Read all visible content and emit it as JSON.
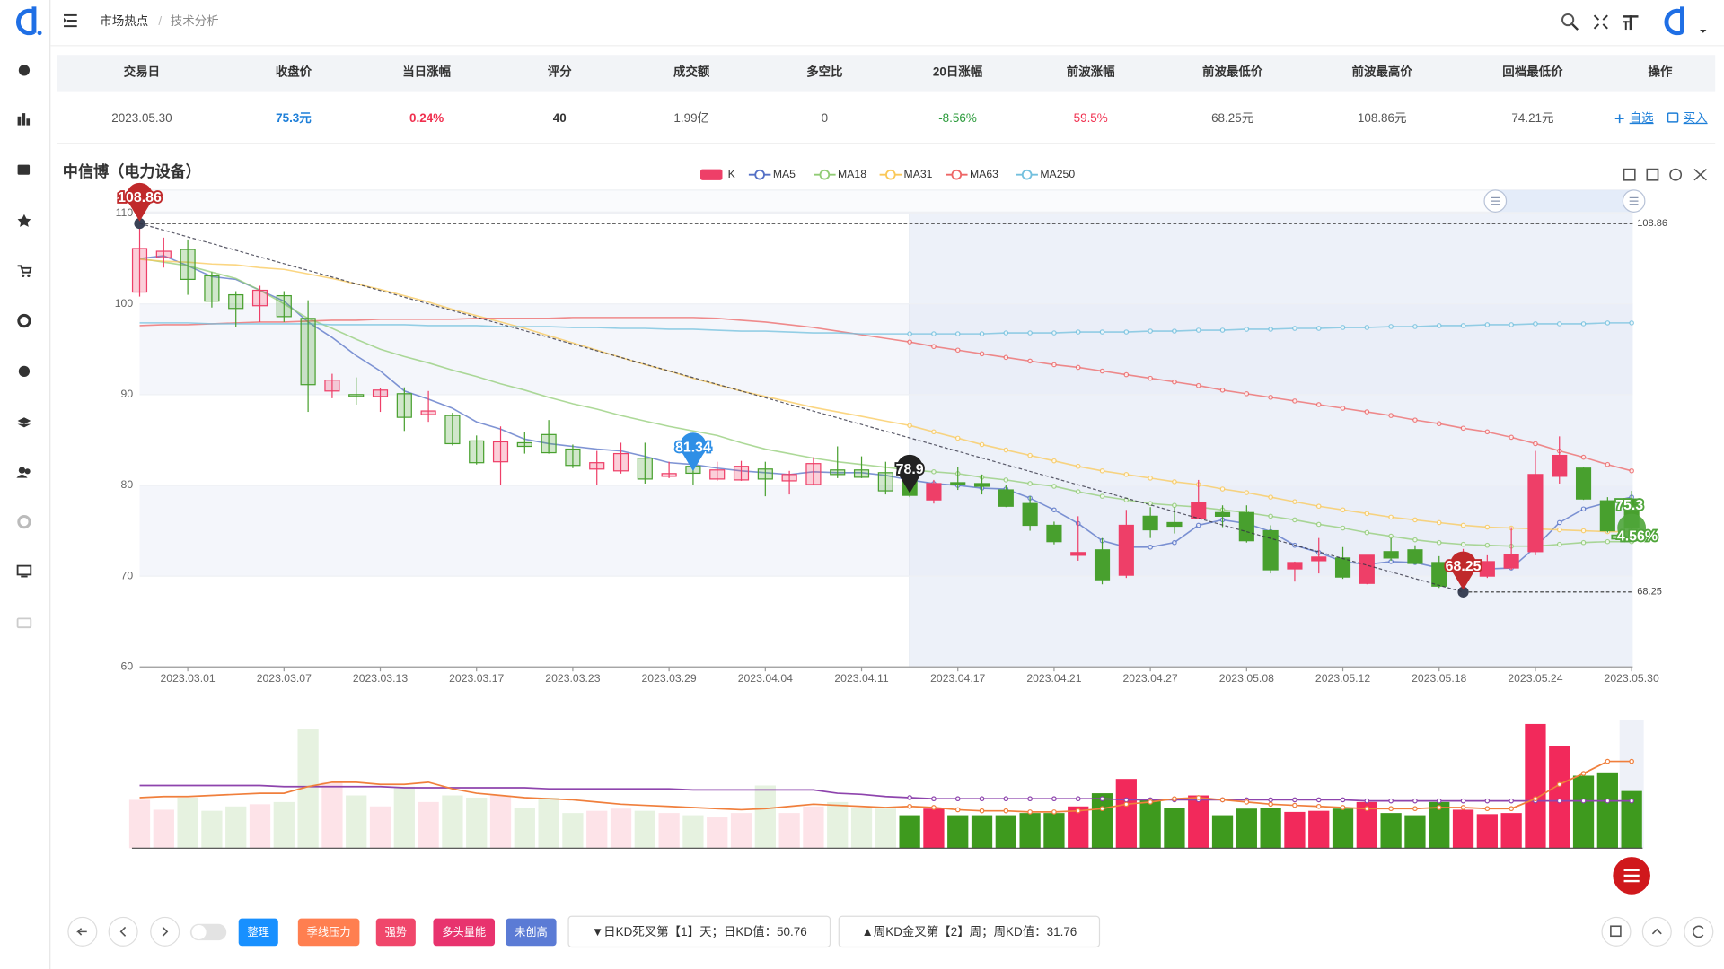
{
  "header": {
    "breadcrumb": [
      "市场热点",
      "技术分析"
    ]
  },
  "table": {
    "columns": [
      "交易日",
      "收盘价",
      "当日涨幅",
      "评分",
      "成交额",
      "多空比",
      "20日涨幅",
      "前波涨幅",
      "前波最低价",
      "前波最高价",
      "回档最低价",
      "操作"
    ],
    "rows": [
      [
        "2023.05.30",
        "75.3元",
        "0.24%",
        "40",
        "1.99亿",
        "0",
        "-8.56%",
        "59.5%",
        "68.25元",
        "108.86元",
        "74.21元"
      ]
    ],
    "actions": [
      "自选",
      "买入"
    ]
  },
  "chart_data": [
    {
      "type": "candlestick",
      "title": "中信博（电力设备）",
      "categories": [
        null,
        null,
        "2023.03.01",
        null,
        null,
        null,
        "2023.03.07",
        null,
        null,
        null,
        "2023.03.13",
        null,
        null,
        null,
        "2023.03.17",
        null,
        null,
        null,
        "2023.03.23",
        null,
        null,
        null,
        "2023.03.29",
        null,
        null,
        null,
        "2023.04.04",
        null,
        null,
        null,
        "2023.04.11",
        null,
        null,
        null,
        "2023.04.17",
        null,
        null,
        null,
        "2023.04.21",
        null,
        null,
        null,
        "2023.04.27",
        null,
        null,
        null,
        "2023.05.08",
        null,
        null,
        null,
        "2023.05.12",
        null,
        null,
        null,
        "2023.05.18",
        null,
        null,
        null,
        "2023.05.24",
        null,
        null,
        null,
        "2023.05.30"
      ],
      "ylim": [
        60,
        110
      ],
      "yticks": [
        60,
        70,
        80,
        90,
        100,
        110
      ],
      "up_color": "#ee3f68",
      "down_color": "#48a02e",
      "series": [
        {
          "name": "K",
          "color": "#ee3f68",
          "open": [
            101.3,
            105.1,
            106.0,
            103.1,
            101.0,
            99.8,
            100.9,
            98.4,
            90.4,
            90.0,
            89.8,
            90.1,
            87.8,
            87.7,
            84.9,
            82.6,
            84.7,
            85.6,
            84.0,
            81.8,
            81.6,
            83.0,
            81.0,
            82.1,
            80.7,
            80.6,
            81.8,
            80.5,
            80.1,
            81.7,
            81.7,
            81.4,
            80.5,
            78.4,
            80.3,
            80.2,
            79.5,
            78.0,
            75.6,
            72.3,
            72.9,
            70.1,
            76.6,
            75.9,
            76.4,
            77.0,
            77.0,
            75.0,
            70.8,
            71.7,
            72.0,
            69.2,
            72.7,
            72.9,
            71.5,
            70.3,
            70.0,
            70.9,
            72.7,
            81.0,
            81.9,
            78.3,
            78.5
          ],
          "high": [
            108.86,
            107.3,
            107.1,
            103.5,
            101.4,
            102.0,
            101.4,
            100.4,
            92.3,
            91.9,
            90.7,
            90.8,
            90.4,
            88.0,
            85.5,
            86.5,
            85.9,
            87.2,
            84.5,
            83.8,
            84.7,
            84.7,
            82.6,
            83.8,
            82.6,
            82.7,
            82.6,
            81.6,
            83.1,
            84.3,
            83.2,
            82.6,
            83.2,
            80.6,
            82.0,
            81.2,
            80.0,
            78.8,
            76.0,
            76.6,
            74.2,
            77.3,
            77.6,
            77.6,
            80.6,
            77.8,
            77.8,
            75.6,
            71.6,
            74.2,
            73.2,
            72.3,
            74.2,
            73.4,
            72.2,
            73.0,
            72.3,
            75.4,
            83.8,
            85.4,
            82.0,
            78.7,
            79.4
          ],
          "low": [
            100.8,
            104.0,
            101.0,
            99.6,
            97.4,
            98.0,
            98.0,
            88.1,
            89.6,
            88.9,
            88.1,
            86.0,
            87.0,
            84.4,
            82.3,
            80.0,
            83.5,
            83.5,
            81.9,
            80.0,
            81.3,
            80.2,
            80.8,
            80.1,
            80.5,
            80.5,
            78.8,
            79.0,
            80.0,
            80.8,
            80.8,
            79.0,
            78.7,
            78.0,
            79.5,
            79.0,
            77.6,
            75.0,
            73.5,
            71.7,
            69.1,
            69.8,
            74.2,
            74.7,
            76.3,
            75.4,
            73.7,
            70.3,
            69.4,
            70.3,
            69.7,
            69.1,
            71.7,
            71.3,
            68.7,
            68.25,
            69.8,
            70.7,
            72.3,
            80.2,
            78.4,
            74.8,
            74.8
          ],
          "close": [
            106.1,
            105.8,
            102.7,
            100.3,
            99.5,
            101.5,
            98.6,
            91.1,
            91.6,
            89.8,
            90.5,
            87.5,
            88.2,
            84.6,
            82.5,
            84.8,
            84.3,
            83.6,
            82.2,
            82.5,
            83.5,
            80.7,
            81.3,
            81.34,
            81.7,
            82.1,
            80.7,
            81.2,
            82.4,
            81.2,
            80.9,
            79.4,
            78.9,
            80.2,
            80.1,
            79.9,
            77.7,
            75.6,
            73.8,
            72.6,
            69.6,
            75.6,
            75.1,
            75.5,
            78.1,
            76.6,
            73.9,
            70.7,
            71.5,
            72.1,
            69.9,
            72.3,
            72.0,
            71.4,
            68.9,
            71.7,
            71.6,
            72.4,
            81.2,
            83.3,
            78.5,
            75.0,
            75.3
          ]
        },
        {
          "name": "MA5",
          "color": "#5470c6",
          "values": [
            105.0,
            105.3,
            104.2,
            103.0,
            102.7,
            101.5,
            100.3,
            98.0,
            96.3,
            94.3,
            92.6,
            90.4,
            89.5,
            88.5,
            87.0,
            86.2,
            85.1,
            84.6,
            84.3,
            84.0,
            83.8,
            83.2,
            82.5,
            82.3,
            81.9,
            81.6,
            81.4,
            81.2,
            81.5,
            81.4,
            81.4,
            81.1,
            80.6,
            80.2,
            80.0,
            79.7,
            79.6,
            78.6,
            77.3,
            75.8,
            73.9,
            73.2,
            73.2,
            73.7,
            75.6,
            76.2,
            75.8,
            74.9,
            73.4,
            72.6,
            71.6,
            71.3,
            71.6,
            71.5,
            70.9,
            70.9,
            70.8,
            70.9,
            73.2,
            75.9,
            77.4,
            78.1,
            78.7
          ]
        },
        {
          "name": "MA18",
          "color": "#91cc75",
          "values": [
            105.0,
            104.6,
            104.2,
            103.5,
            102.8,
            101.5,
            100.0,
            98.4,
            97.3,
            96.1,
            95.0,
            94.2,
            93.5,
            92.7,
            92.0,
            91.2,
            90.5,
            89.7,
            89.0,
            88.4,
            87.7,
            87.1,
            86.5,
            86.0,
            85.5,
            84.7,
            84.0,
            83.5,
            83.0,
            82.6,
            82.3,
            82.0,
            81.7,
            81.5,
            81.3,
            80.9,
            80.6,
            80.2,
            79.9,
            79.3,
            78.8,
            78.4,
            78.0,
            77.8,
            77.6,
            77.3,
            77.0,
            76.6,
            76.2,
            75.7,
            75.3,
            74.8,
            74.4,
            74.0,
            73.7,
            73.5,
            73.4,
            73.3,
            73.3,
            73.5,
            73.7,
            73.8,
            73.8
          ]
        },
        {
          "name": "MA31",
          "color": "#fac858",
          "values": [
            104.9,
            104.7,
            104.6,
            104.4,
            104.3,
            104.0,
            103.8,
            103.3,
            102.8,
            102.2,
            101.6,
            100.9,
            100.2,
            99.4,
            98.7,
            98.0,
            97.3,
            96.5,
            95.7,
            94.9,
            94.1,
            93.3,
            92.6,
            91.8,
            91.1,
            90.4,
            89.8,
            89.2,
            88.6,
            88.1,
            87.6,
            87.1,
            86.6,
            85.9,
            85.2,
            84.5,
            83.9,
            83.3,
            82.7,
            82.1,
            81.6,
            81.2,
            80.8,
            80.4,
            80.1,
            79.6,
            79.2,
            78.7,
            78.2,
            77.7,
            77.3,
            76.9,
            76.5,
            76.2,
            75.9,
            75.6,
            75.4,
            75.3,
            75.2,
            75.1,
            75.0,
            74.9,
            74.9
          ]
        },
        {
          "name": "MA63",
          "color": "#ee6666",
          "values": [
            97.6,
            97.7,
            97.7,
            97.8,
            97.9,
            98.0,
            98.0,
            98.1,
            98.2,
            98.2,
            98.3,
            98.3,
            98.3,
            98.3,
            98.4,
            98.4,
            98.4,
            98.4,
            98.5,
            98.5,
            98.5,
            98.5,
            98.5,
            98.5,
            98.4,
            98.2,
            98.0,
            97.7,
            97.4,
            97.0,
            96.6,
            96.2,
            95.8,
            95.3,
            94.9,
            94.5,
            94.1,
            93.7,
            93.3,
            93.0,
            92.6,
            92.2,
            91.8,
            91.4,
            91.0,
            90.5,
            90.1,
            89.7,
            89.3,
            88.9,
            88.5,
            88.1,
            87.7,
            87.2,
            86.8,
            86.3,
            85.9,
            85.3,
            84.6,
            83.8,
            83.1,
            82.3,
            81.6
          ]
        },
        {
          "name": "MA250",
          "color": "#73c0de",
          "values": [
            97.9,
            97.9,
            97.9,
            97.8,
            97.8,
            97.8,
            97.8,
            97.8,
            97.7,
            97.7,
            97.7,
            97.7,
            97.6,
            97.6,
            97.6,
            97.5,
            97.5,
            97.5,
            97.4,
            97.4,
            97.3,
            97.3,
            97.2,
            97.2,
            97.1,
            97.0,
            97.0,
            96.9,
            96.8,
            96.8,
            96.7,
            96.7,
            96.7,
            96.7,
            96.7,
            96.7,
            96.8,
            96.8,
            96.8,
            96.9,
            96.9,
            96.9,
            97.0,
            97.0,
            97.1,
            97.1,
            97.2,
            97.2,
            97.3,
            97.3,
            97.4,
            97.4,
            97.5,
            97.5,
            97.6,
            97.6,
            97.7,
            97.7,
            97.8,
            97.8,
            97.8,
            97.9,
            97.9
          ]
        }
      ],
      "markers": [
        {
          "value": 108.86,
          "color": "#c0292b",
          "level": true
        },
        {
          "value": 81.34,
          "color": "#2f8fe6"
        },
        {
          "value": 78.9,
          "color": "#222222"
        },
        {
          "value": 68.25,
          "color": "#c0292b",
          "level": true
        },
        {
          "value": 75.3,
          "change": "-4.56%",
          "color": "#4fa53a"
        }
      ]
    },
    {
      "type": "bar",
      "ylim": [
        0,
        120
      ],
      "values": [
        44,
        35,
        46,
        34,
        38,
        40,
        42,
        108,
        60,
        48,
        38,
        56,
        42,
        48,
        46,
        48,
        37,
        46,
        32,
        34,
        36,
        34,
        32,
        30,
        28,
        32,
        57,
        32,
        38,
        42,
        37,
        36,
        30,
        36,
        30,
        30,
        30,
        32,
        32,
        38,
        50,
        63,
        45,
        37,
        48,
        30,
        36,
        37,
        33,
        34,
        36,
        42,
        32,
        30,
        42,
        35,
        31,
        32,
        113,
        93,
        66,
        69,
        52
      ],
      "series": [
        {
          "color": "#8e44ad",
          "values": [
            57,
            57,
            57,
            57,
            57,
            57,
            56,
            56,
            56,
            56,
            56,
            55,
            55,
            55,
            55,
            55,
            55,
            54,
            54,
            54,
            54,
            54,
            54,
            53,
            53,
            53,
            53,
            53,
            53,
            50,
            49,
            47,
            46,
            45,
            45,
            45,
            45,
            45,
            45,
            45,
            45,
            44,
            44,
            44,
            44,
            44,
            44,
            44,
            44,
            44,
            44,
            43,
            43,
            43,
            43,
            43,
            43,
            43,
            43,
            43,
            43,
            43,
            43
          ]
        },
        {
          "color": "#f07f3c",
          "values": [
            46,
            47,
            47,
            48,
            49,
            50,
            50,
            56,
            60,
            60,
            58,
            58,
            60,
            54,
            50,
            48,
            46,
            45,
            44,
            42,
            40,
            39,
            38,
            37,
            36,
            35,
            36,
            38,
            40,
            39,
            38,
            37,
            38,
            37,
            35,
            34,
            34,
            33,
            33,
            34,
            36,
            40,
            42,
            45,
            46,
            44,
            42,
            40,
            39,
            38,
            37,
            36,
            36,
            36,
            37,
            37,
            36,
            36,
            45,
            58,
            68,
            79,
            79
          ]
        }
      ]
    }
  ],
  "toolbar": {
    "tags": [
      {
        "text": "整理",
        "color": "#1890ff"
      },
      {
        "text": "季线压力",
        "color": "#ff7f50"
      },
      {
        "text": "强势",
        "color": "#f0476b"
      },
      {
        "text": "多头量能",
        "color": "#e8336e"
      },
      {
        "text": "未创高",
        "color": "#5b7bd5"
      }
    ],
    "signals": [
      "▼日KD死叉第【1】天；日KD值：50.76",
      "▲周KD金叉第【2】周；周KD值：31.76"
    ]
  }
}
